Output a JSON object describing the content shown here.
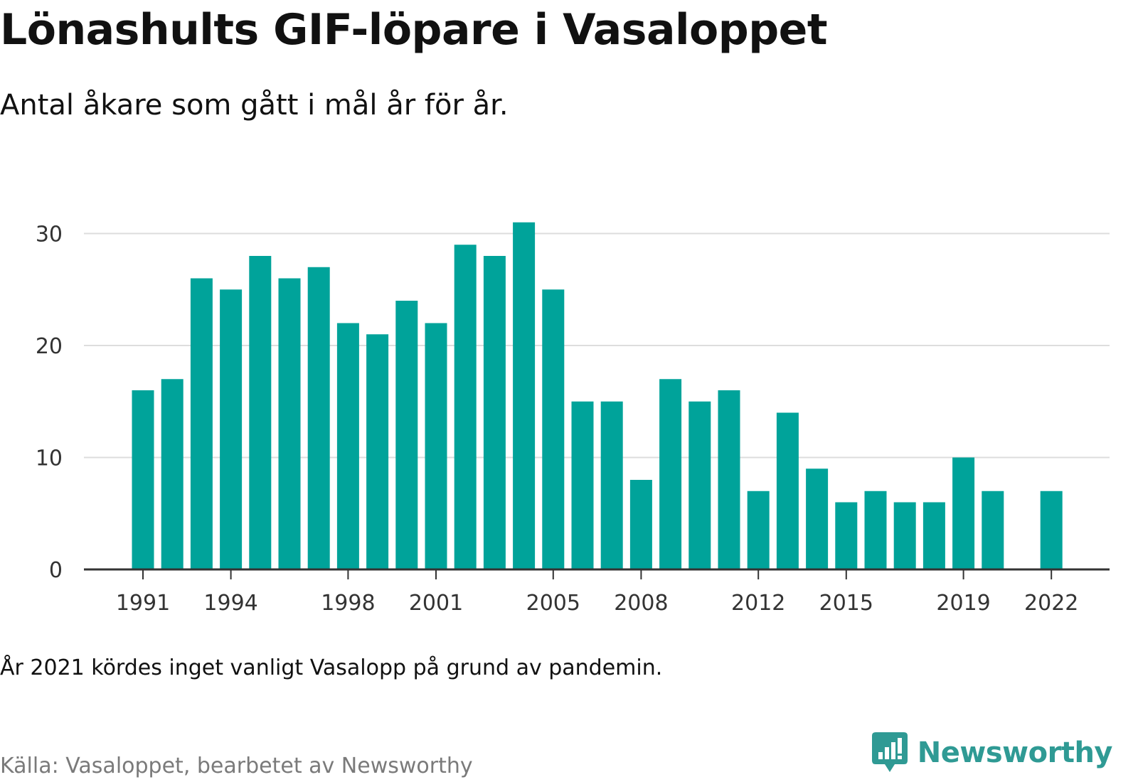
{
  "header": {
    "title": "Lönashults GIF-löpare i Vasaloppet",
    "subtitle": "Antal åkare som gått i mål år för år."
  },
  "footer": {
    "note": "År 2021 kördes inget vanligt Vasalopp på grund av pandemin.",
    "source": "Källa: Vasaloppet, bearbetet av Newsworthy",
    "brand": "Newsworthy"
  },
  "colors": {
    "bar": "#00a39a",
    "grid": "#dddddd",
    "axis": "#333333",
    "tick_text": "#333333",
    "brand": "#2f9a94"
  },
  "chart_data": {
    "type": "bar",
    "title": "Lönashults GIF-löpare i Vasaloppet",
    "subtitle": "Antal åkare som gått i mål år för år.",
    "x": [
      1991,
      1992,
      1993,
      1994,
      1995,
      1996,
      1997,
      1998,
      1999,
      2000,
      2001,
      2002,
      2003,
      2004,
      2005,
      2006,
      2007,
      2008,
      2009,
      2010,
      2011,
      2012,
      2013,
      2014,
      2015,
      2016,
      2017,
      2018,
      2019,
      2020,
      2021,
      2022
    ],
    "values": [
      16,
      17,
      26,
      25,
      28,
      26,
      27,
      22,
      21,
      24,
      22,
      29,
      28,
      31,
      25,
      15,
      15,
      8,
      17,
      15,
      16,
      7,
      14,
      9,
      6,
      7,
      6,
      6,
      10,
      7,
      null,
      7
    ],
    "x_tick_labels": [
      "1991",
      "1994",
      "1998",
      "2001",
      "2005",
      "2008",
      "2012",
      "2015",
      "2019",
      "2022"
    ],
    "y_ticks": [
      0,
      10,
      20,
      30
    ],
    "ylim": [
      0,
      31
    ],
    "xlabel": "",
    "ylabel": "",
    "grid": true,
    "legend": "none"
  }
}
